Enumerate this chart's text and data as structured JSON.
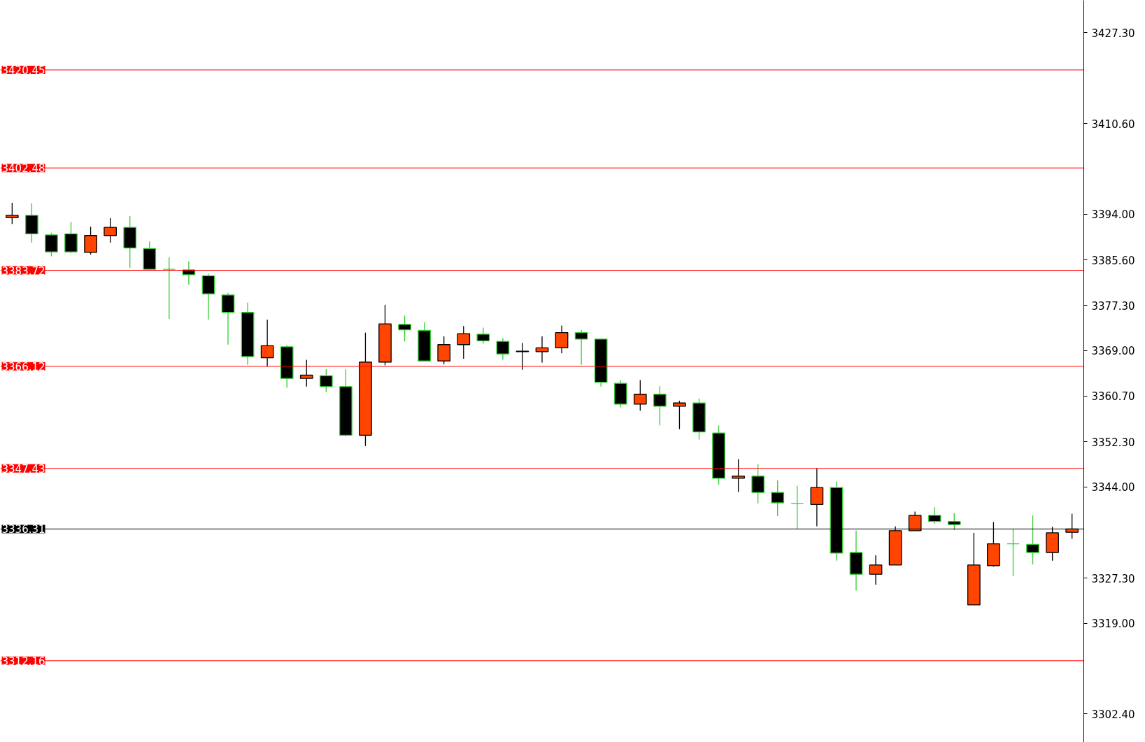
{
  "chart_data": {
    "type": "candlestick",
    "categories": [
      null,
      null,
      null,
      null,
      null,
      null,
      null,
      null,
      null,
      null,
      null,
      null,
      null,
      null,
      null,
      null,
      null,
      null,
      null,
      null,
      null,
      null,
      null,
      null,
      null,
      null,
      null,
      null,
      null,
      null,
      null,
      null,
      null,
      null,
      null,
      null,
      null,
      null,
      null,
      null,
      null,
      null,
      null,
      null,
      null,
      null,
      null,
      null,
      null,
      null,
      null,
      null,
      null,
      null,
      null
    ],
    "ohlc": [
      [
        3393.4,
        3396.1,
        3392.2,
        3393.8
      ],
      [
        3393.8,
        3396.0,
        3388.8,
        3390.4
      ],
      [
        3390.2,
        3390.6,
        3386.3,
        3387.1
      ],
      [
        3390.4,
        3392.6,
        3386.9,
        3387.1
      ],
      [
        3387.0,
        3391.7,
        3386.6,
        3390.1
      ],
      [
        3390.1,
        3393.3,
        3388.8,
        3391.6
      ],
      [
        3391.6,
        3393.7,
        3384.2,
        3387.8
      ],
      [
        3387.7,
        3389.0,
        3383.9,
        3383.9
      ],
      [
        3383.9,
        3386.1,
        3374.8,
        3383.9
      ],
      [
        3383.8,
        3385.4,
        3381.1,
        3382.9
      ],
      [
        3382.7,
        3383.1,
        3374.7,
        3379.4
      ],
      [
        3379.2,
        3379.6,
        3370.1,
        3376.0
      ],
      [
        3376.0,
        3377.8,
        3366.4,
        3367.9
      ],
      [
        3367.7,
        3374.7,
        3366.1,
        3369.9
      ],
      [
        3369.7,
        3370.0,
        3362.2,
        3363.9
      ],
      [
        3363.9,
        3367.3,
        3362.4,
        3364.5
      ],
      [
        3364.4,
        3365.6,
        3361.4,
        3362.4
      ],
      [
        3362.4,
        3365.6,
        3353.3,
        3353.5
      ],
      [
        3353.5,
        3372.3,
        3351.5,
        3366.9
      ],
      [
        3366.9,
        3377.4,
        3366.3,
        3373.9
      ],
      [
        3373.8,
        3375.4,
        3370.7,
        3372.8
      ],
      [
        3372.7,
        3374.2,
        3367.1,
        3367.1
      ],
      [
        3367.1,
        3371.6,
        3366.5,
        3370.1
      ],
      [
        3370.1,
        3373.5,
        3367.5,
        3372.1
      ],
      [
        3372.0,
        3373.2,
        3370.3,
        3370.8
      ],
      [
        3370.7,
        3371.3,
        3367.3,
        3368.4
      ],
      [
        3368.8,
        3370.4,
        3365.5,
        3368.9
      ],
      [
        3368.8,
        3371.6,
        3366.8,
        3369.5
      ],
      [
        3369.5,
        3373.6,
        3368.5,
        3372.3
      ],
      [
        3372.3,
        3372.8,
        3366.4,
        3371.1
      ],
      [
        3371.1,
        3371.1,
        3362.4,
        3363.2
      ],
      [
        3363.0,
        3363.6,
        3358.6,
        3359.2
      ],
      [
        3359.2,
        3363.6,
        3358.0,
        3361.0
      ],
      [
        3361.0,
        3362.5,
        3355.3,
        3358.8
      ],
      [
        3358.8,
        3359.8,
        3354.6,
        3359.4
      ],
      [
        3359.4,
        3360.2,
        3352.7,
        3354.1
      ],
      [
        3353.9,
        3355.3,
        3344.4,
        3345.6
      ],
      [
        3345.6,
        3349.1,
        3343.1,
        3346.0
      ],
      [
        3346.0,
        3348.2,
        3341.0,
        3343.0
      ],
      [
        3343.0,
        3345.2,
        3338.7,
        3341.1
      ],
      [
        3341.0,
        3344.2,
        3336.4,
        3341.0
      ],
      [
        3340.8,
        3347.4,
        3336.8,
        3343.9
      ],
      [
        3343.9,
        3345.0,
        3330.5,
        3331.9
      ],
      [
        3332.0,
        3336.0,
        3325.0,
        3328.0
      ],
      [
        3328.0,
        3331.5,
        3326.1,
        3329.7
      ],
      [
        3329.7,
        3336.8,
        3329.7,
        3336.0
      ],
      [
        3336.0,
        3339.5,
        3336.0,
        3338.8
      ],
      [
        3338.8,
        3340.3,
        3337.3,
        3337.7
      ],
      [
        3337.7,
        3339.2,
        3336.1,
        3337.1
      ],
      [
        3322.4,
        3335.6,
        3322.4,
        3329.7
      ],
      [
        3329.6,
        3337.6,
        3329.4,
        3333.6
      ],
      [
        3333.6,
        3336.3,
        3327.7,
        3333.6
      ],
      [
        3333.5,
        3338.8,
        3329.8,
        3332.0
      ],
      [
        3332.0,
        3336.7,
        3330.5,
        3335.6
      ],
      [
        3335.7,
        3339.1,
        3334.5,
        3336.3
      ]
    ],
    "colors": [
      "#ff4500",
      "#000000",
      "#000000",
      "#000000",
      "#ff4500",
      "#ff4500",
      "#000000",
      "#000000",
      "#32cd32",
      "#000000",
      "#000000",
      "#000000",
      "#000000",
      "#ff4500",
      "#000000",
      "#ff4500",
      "#000000",
      "#000000",
      "#ff4500",
      "#ff4500",
      "#000000",
      "#000000",
      "#ff4500",
      "#ff4500",
      "#000000",
      "#000000",
      "#ff4500",
      "#ff4500",
      "#ff4500",
      "#000000",
      "#000000",
      "#000000",
      "#ff4500",
      "#000000",
      "#ff4500",
      "#000000",
      "#000000",
      "#ff4500",
      "#000000",
      "#000000",
      "#32cd32",
      "#ff4500",
      "#000000",
      "#000000",
      "#ff4500",
      "#ff4500",
      "#ff4500",
      "#000000",
      "#000000",
      "#ff4500",
      "#ff4500",
      "#32cd32",
      "#000000",
      "#ff4500",
      "#ff4500"
    ],
    "ylim": [
      3297.2,
      3433.2
    ],
    "yticks": [
      {
        "value": 3427.3,
        "label": "3427.30"
      },
      {
        "value": 3410.6,
        "label": "3410.60"
      },
      {
        "value": 3394.0,
        "label": "3394.00"
      },
      {
        "value": 3385.6,
        "label": "3385.60"
      },
      {
        "value": 3377.3,
        "label": "3377.30"
      },
      {
        "value": 3369.0,
        "label": "3369.00"
      },
      {
        "value": 3360.7,
        "label": "3360.70"
      },
      {
        "value": 3352.3,
        "label": "3352.30"
      },
      {
        "value": 3344.0,
        "label": "3344.00"
      },
      {
        "value": 3327.3,
        "label": "3327.30"
      },
      {
        "value": 3319.0,
        "label": "3319.00"
      },
      {
        "value": 3302.4,
        "label": "3302.40"
      }
    ],
    "ref_lines": [
      {
        "axis": "y",
        "value": 3420.45,
        "label": "3420.45",
        "color": "#ff0000"
      },
      {
        "axis": "y",
        "value": 3402.48,
        "label": "3402.48",
        "color": "#ff0000"
      },
      {
        "axis": "y",
        "value": 3383.72,
        "label": "3383.72",
        "color": "#ff0000"
      },
      {
        "axis": "y",
        "value": 3366.12,
        "label": "3366.12",
        "color": "#ff0000"
      },
      {
        "axis": "y",
        "value": 3347.43,
        "label": "3347.43",
        "color": "#ff0000"
      },
      {
        "axis": "y",
        "value": 3312.16,
        "label": "3312.16",
        "color": "#ff0000"
      },
      {
        "axis": "y",
        "value": 3336.31,
        "label": "3336.31",
        "color": "#000000"
      }
    ],
    "tick_labels": "y"
  }
}
